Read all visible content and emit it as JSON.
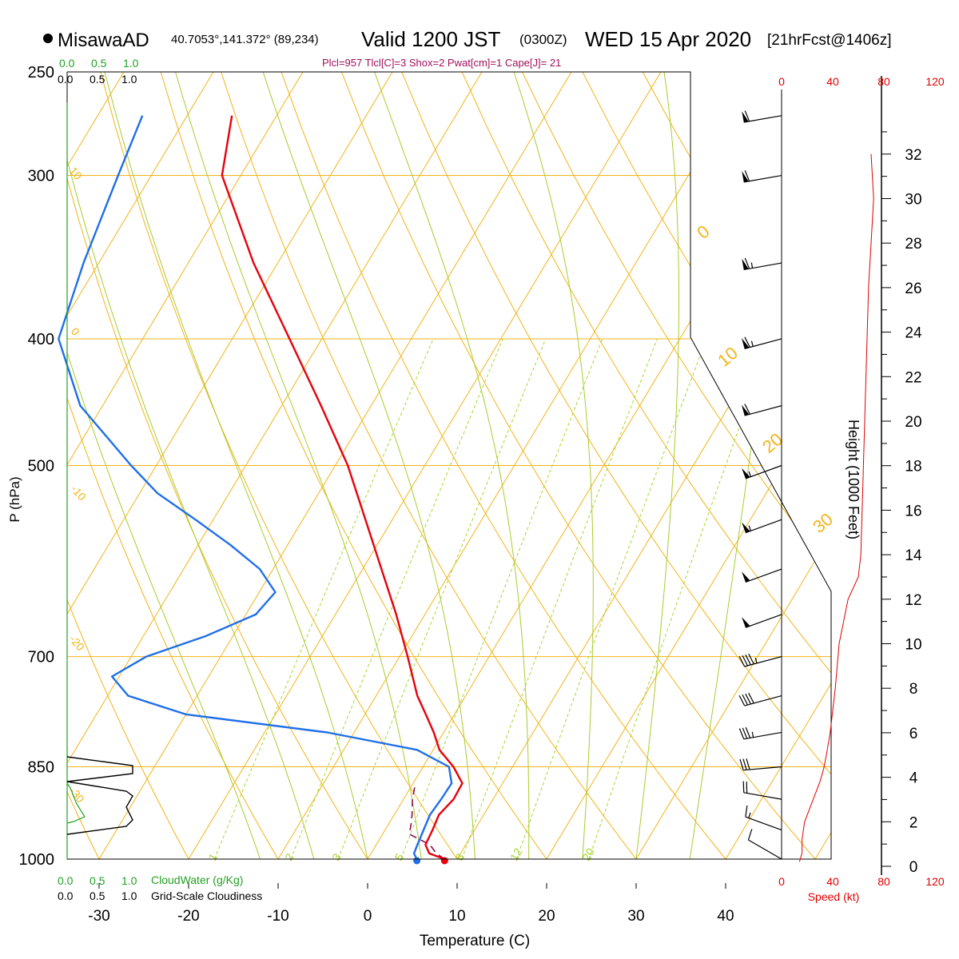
{
  "header": {
    "station": "MisawaAD",
    "location": "40.7053°,141.372° (89,234)",
    "valid_label": "Valid 1200 JST",
    "utc": "(0300Z)",
    "date": "WED 15 Apr 2020",
    "forecast": "[21hrFcst@1406z]",
    "indices": "Plcl=957 Tlcl[C]=3 Shox=2 Pwat[cm]=1 Cape[J]= 21"
  },
  "colors": {
    "temperature": "#e8000b",
    "dewpoint": "#1f6fe8",
    "parcel": "#8b0a50",
    "isotherm": "#f2b417",
    "dry_adiabat": "#f2b417",
    "moist_adiabat": "#a8cc2c",
    "mixing_ratio": "#a8d630",
    "cloud_water": "#22a022",
    "indices_text": "#a0105a",
    "speed": "#e00000"
  },
  "chart_data": {
    "type": "line",
    "title": "",
    "xlabel": "Temperature (C)",
    "ylabel": "P (hPa)",
    "x_ticks": [
      -30,
      -20,
      -10,
      0,
      10,
      20,
      30,
      40
    ],
    "pressure_levels": [
      250,
      300,
      400,
      500,
      700,
      850,
      1000
    ],
    "xlim": [
      -34,
      44
    ],
    "ylim_hpa": [
      250,
      1000
    ],
    "y_scale": "log",
    "skew": true,
    "isotherm_labels": [
      10,
      0,
      -10,
      -20,
      -30
    ],
    "dry_adiabat_labels": [
      0,
      10,
      20,
      30
    ],
    "mixing_ratio_labels": [
      "1",
      "2",
      "3",
      "5",
      "8",
      "12",
      "20"
    ],
    "series": [
      {
        "key": "temperature",
        "pressure": [
          1000,
          990,
          975,
          950,
          925,
          900,
          875,
          850,
          825,
          800,
          775,
          750,
          700,
          650,
          600,
          550,
          500,
          450,
          400,
          350,
          300,
          270
        ],
        "values": [
          8.6,
          6.5,
          5.5,
          5.3,
          5.0,
          5.6,
          5.5,
          3.4,
          0.7,
          -1.1,
          -3.2,
          -5.4,
          -9.1,
          -13.2,
          -17.9,
          -23.0,
          -28.6,
          -35.6,
          -43.6,
          -52.7,
          -62.1,
          -65.0
        ]
      },
      {
        "key": "dewpoint",
        "pressure": [
          1000,
          990,
          975,
          950,
          925,
          900,
          875,
          850,
          825,
          800,
          775,
          750,
          725,
          700,
          675,
          650,
          625,
          600,
          575,
          550,
          525,
          500,
          450,
          400,
          350,
          300,
          270
        ],
        "values": [
          5.5,
          4.8,
          4.6,
          4.3,
          4.0,
          4.2,
          4.3,
          2.9,
          -1.8,
          -13.0,
          -30.0,
          -37.7,
          -40.8,
          -38.3,
          -33.0,
          -28.9,
          -28.2,
          -31.5,
          -36.4,
          -42.0,
          -48.0,
          -52.8,
          -62.5,
          -69.4,
          -71.7,
          -73.7,
          -75.0
        ]
      },
      {
        "key": "parcel",
        "pressure": [
          1000,
          990,
          975,
          957,
          940,
          925,
          900,
          880
        ],
        "values": [
          8.6,
          7.3,
          6.0,
          3.0,
          2.5,
          2.0,
          1.0,
          0.4
        ]
      }
    ],
    "height_axis": {
      "label": "Height (1000 Feet)",
      "ticks": [
        0,
        2,
        4,
        6,
        8,
        10,
        12,
        14,
        16,
        18,
        20,
        22,
        24,
        26,
        28,
        30,
        32
      ]
    },
    "wind_speed": {
      "label": "Speed (kt)",
      "ticks": [
        0,
        40,
        80,
        120
      ],
      "height_kft": [
        0.2,
        0.6,
        1.2,
        2.0,
        2.6,
        3.2,
        3.8,
        4.4,
        5.0,
        6.0,
        8.0,
        10.0,
        12.0,
        13.0,
        14.0,
        16.0,
        18.0,
        20.0,
        22.0,
        24.0,
        26.0,
        28.0,
        30.0,
        32.0
      ],
      "speed": [
        14,
        16,
        16,
        18,
        22,
        26,
        30,
        33,
        35,
        38,
        42,
        45,
        52,
        60,
        62,
        63,
        64,
        65,
        66,
        67,
        68,
        70,
        72,
        70
      ]
    },
    "wind_barbs": [
      {
        "p": 270,
        "dir": 280,
        "kt": 60
      },
      {
        "p": 300,
        "dir": 280,
        "kt": 62
      },
      {
        "p": 350,
        "dir": 280,
        "kt": 65
      },
      {
        "p": 400,
        "dir": 285,
        "kt": 65
      },
      {
        "p": 450,
        "dir": 285,
        "kt": 62
      },
      {
        "p": 500,
        "dir": 290,
        "kt": 58
      },
      {
        "p": 550,
        "dir": 290,
        "kt": 55
      },
      {
        "p": 600,
        "dir": 290,
        "kt": 52
      },
      {
        "p": 650,
        "dir": 290,
        "kt": 50
      },
      {
        "p": 700,
        "dir": 285,
        "kt": 45
      },
      {
        "p": 750,
        "dir": 285,
        "kt": 40
      },
      {
        "p": 800,
        "dir": 280,
        "kt": 36
      },
      {
        "p": 850,
        "dir": 275,
        "kt": 34
      },
      {
        "p": 900,
        "dir": 260,
        "kt": 22
      },
      {
        "p": 950,
        "dir": 250,
        "kt": 15
      },
      {
        "p": 1000,
        "dir": 240,
        "kt": 12
      }
    ],
    "cloud_scale": {
      "cloud_water_label": "CloudWater (g/Kg)",
      "cloudiness_label": "Grid-Scale Cloudiness",
      "ticks": [
        "0.0",
        "0.5",
        "1.0"
      ]
    }
  }
}
